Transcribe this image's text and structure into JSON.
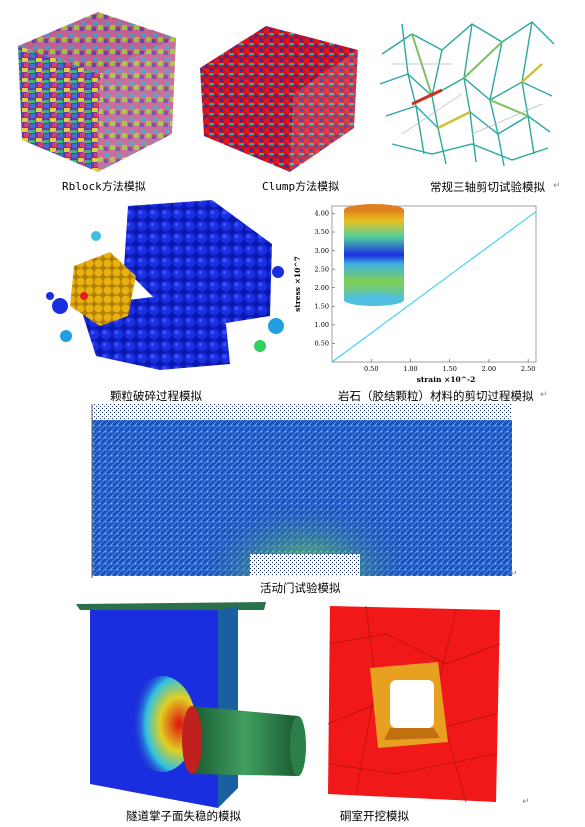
{
  "captions": {
    "rblock": "Rblock方法模拟",
    "clump": "Clump方法模拟",
    "triaxial": "常规三轴剪切试验模拟",
    "crushing": "颗粒破碎过程模拟",
    "rock_shear": "岩石（胶结颗粒）材料的剪切过程模拟",
    "trapdoor": "活动门试验模拟",
    "tunnel_face": "隧道掌子面失稳的模拟",
    "cavern": "硐室开挖模拟"
  },
  "return_mark": "↵",
  "chart_data": {
    "type": "line",
    "title": "",
    "xlabel": "strain ×10^-2",
    "ylabel": "stress ×10^7",
    "x_ticks": [
      "0.50",
      "1.00",
      "1.50",
      "2.00",
      "2.50"
    ],
    "y_ticks": [
      "0.50",
      "1.00",
      "1.50",
      "2.00",
      "2.50",
      "3.00",
      "3.50",
      "4.00"
    ],
    "xlim": [
      0,
      2.6
    ],
    "ylim": [
      0,
      4.2
    ],
    "series": [
      {
        "x": [
          0,
          2.6
        ],
        "y": [
          0,
          4.05
        ]
      }
    ],
    "colors": {
      "line": "#3ad0ee"
    }
  }
}
